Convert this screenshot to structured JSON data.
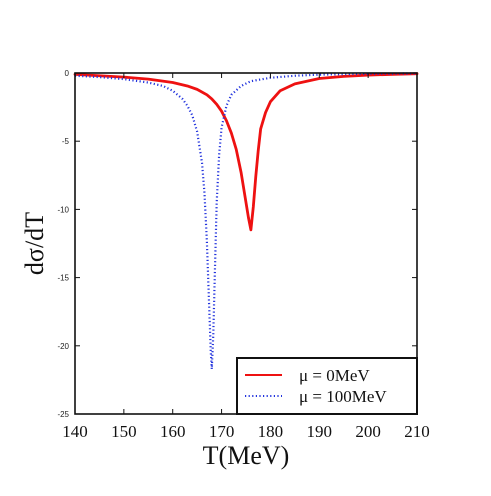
{
  "chart_data": {
    "type": "line",
    "xlabel": "T(MeV)",
    "ylabel": "dσ/dT",
    "xlim": [
      140,
      210
    ],
    "ylim": [
      -25,
      0
    ],
    "xticks": [
      "140",
      "150",
      "160",
      "170",
      "180",
      "190",
      "200",
      "210"
    ],
    "yticks": [
      "0",
      "-5",
      "-10",
      "-15",
      "-20",
      "-25"
    ],
    "grid": false,
    "legend_position": "bottom-right",
    "series": [
      {
        "name": "μ = 0MeV",
        "color": "#ee1111",
        "style": "solid",
        "x": [
          140,
          145,
          150,
          155,
          160,
          163,
          165,
          167,
          168,
          169,
          170,
          171,
          172,
          173,
          174,
          175,
          175.5,
          176,
          176.5,
          177,
          177.5,
          178,
          179,
          180,
          182,
          185,
          190,
          195,
          200,
          205,
          210
        ],
        "y": [
          -0.1,
          -0.2,
          -0.3,
          -0.45,
          -0.7,
          -0.95,
          -1.2,
          -1.6,
          -1.9,
          -2.3,
          -2.8,
          -3.5,
          -4.4,
          -5.6,
          -7.3,
          -9.5,
          -10.6,
          -11.5,
          -9.8,
          -7.6,
          -5.7,
          -4.1,
          -2.9,
          -2.1,
          -1.3,
          -0.8,
          -0.4,
          -0.25,
          -0.15,
          -0.1,
          -0.05
        ]
      },
      {
        "name": "μ = 100MeV",
        "color": "#2233dd",
        "style": "dotted",
        "x": [
          140,
          145,
          150,
          155,
          158,
          160,
          162,
          163,
          164,
          165,
          166,
          166.5,
          167,
          167.5,
          167.8,
          168,
          168.3,
          168.6,
          169,
          169.5,
          170,
          171,
          172,
          174,
          176,
          180,
          185,
          190,
          200,
          210
        ],
        "y": [
          -0.2,
          -0.3,
          -0.45,
          -0.7,
          -0.95,
          -1.3,
          -1.9,
          -2.4,
          -3.1,
          -4.3,
          -6.6,
          -8.8,
          -12.4,
          -17.5,
          -20.5,
          -21.7,
          -19.2,
          -15.0,
          -9.5,
          -6.0,
          -4.0,
          -2.4,
          -1.6,
          -0.95,
          -0.6,
          -0.35,
          -0.2,
          -0.12,
          -0.06,
          -0.03
        ]
      }
    ]
  }
}
